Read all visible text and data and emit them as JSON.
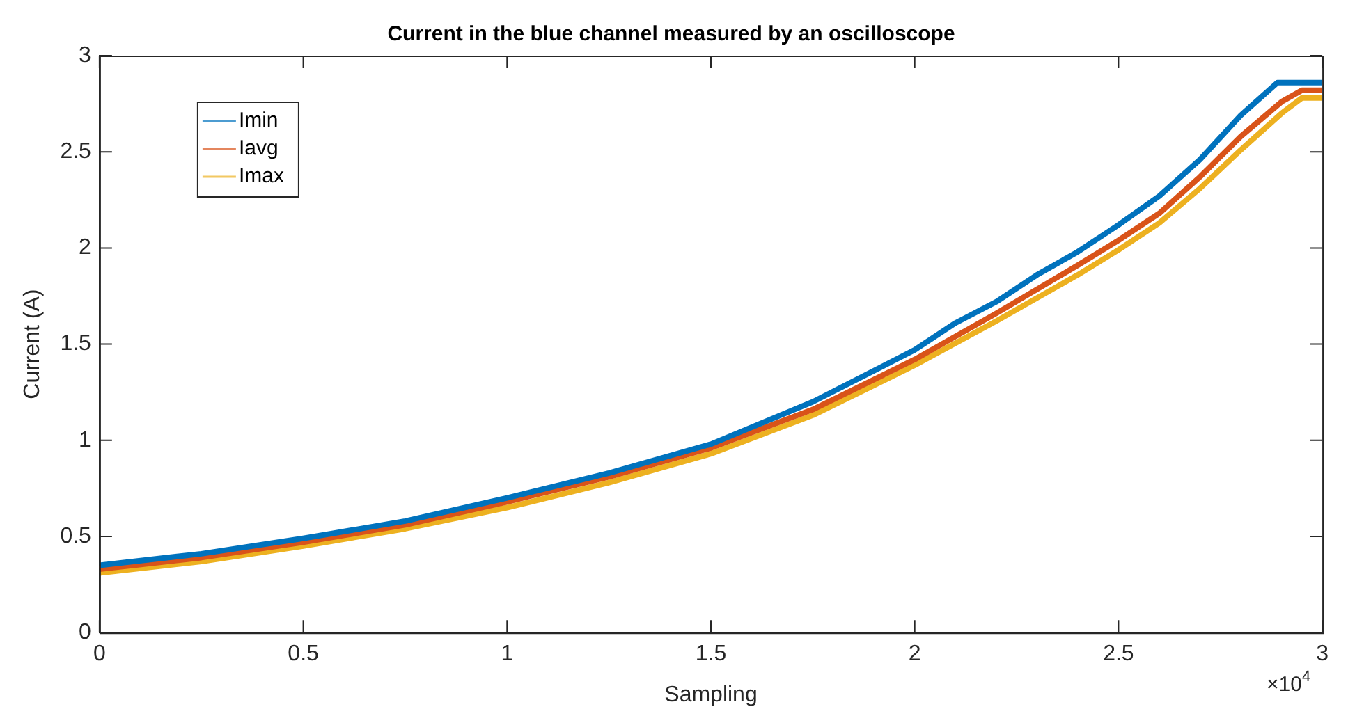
{
  "chart_data": {
    "type": "line",
    "title": "Current in the blue channel measured by an oscilloscope",
    "xlabel": "Sampling",
    "ylabel": "Current (A)",
    "x": [
      0,
      0.25,
      0.5,
      0.75,
      1,
      1.25,
      1.5,
      1.75,
      2,
      2.1,
      2.2,
      2.3,
      2.4,
      2.5,
      2.6,
      2.7,
      2.8,
      2.89,
      3
    ],
    "series": [
      {
        "name": "Imin",
        "color": "#0072bd",
        "values": [
          0.35,
          0.41,
          0.49,
          0.58,
          0.7,
          0.83,
          0.98,
          1.2,
          1.47,
          1.61,
          1.72,
          1.86,
          1.98,
          2.12,
          2.27,
          2.46,
          2.69,
          2.86,
          2.86
        ]
      },
      {
        "name": "Iavg",
        "color": "#d95319",
        "x": [
          0,
          0.25,
          0.5,
          0.75,
          1,
          1.25,
          1.5,
          1.75,
          2,
          2.2,
          2.4,
          2.5,
          2.6,
          2.7,
          2.8,
          2.9,
          2.95,
          3
        ],
        "values": [
          0.33,
          0.39,
          0.47,
          0.56,
          0.68,
          0.81,
          0.96,
          1.16,
          1.42,
          1.66,
          1.91,
          2.04,
          2.18,
          2.37,
          2.58,
          2.76,
          2.82,
          2.82
        ]
      },
      {
        "name": "Imax",
        "color": "#edb120",
        "x": [
          0,
          0.25,
          0.5,
          0.75,
          1,
          1.25,
          1.5,
          1.75,
          2,
          2.2,
          2.4,
          2.5,
          2.6,
          2.7,
          2.8,
          2.9,
          2.95,
          3
        ],
        "values": [
          0.31,
          0.37,
          0.45,
          0.54,
          0.65,
          0.78,
          0.93,
          1.13,
          1.39,
          1.62,
          1.86,
          1.99,
          2.13,
          2.31,
          2.51,
          2.7,
          2.78,
          2.78
        ]
      }
    ],
    "xlim": [
      0,
      3
    ],
    "xticks": [
      0,
      0.5,
      1,
      1.5,
      2,
      2.5,
      3
    ],
    "ylim": [
      0,
      3
    ],
    "yticks": [
      0,
      0.5,
      1,
      1.5,
      2,
      2.5,
      3
    ],
    "annotations": [
      "×10$^{4}$"
    ],
    "legend": "top left",
    "grid": false,
    "marker": "none",
    "line_style": "solid"
  }
}
